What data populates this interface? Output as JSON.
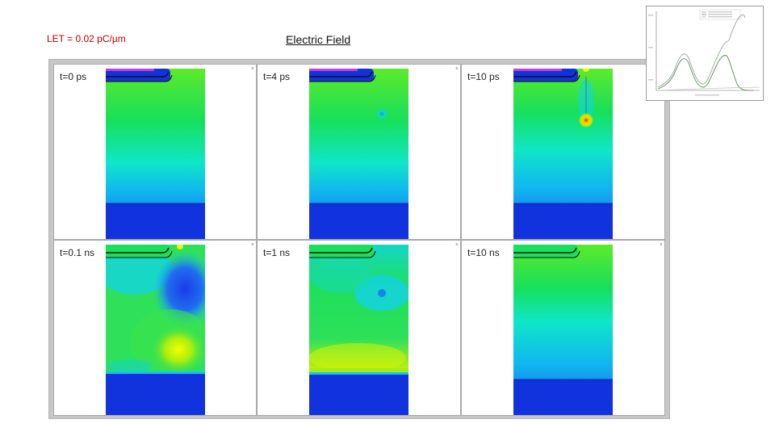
{
  "header": {
    "let_label": "LET = 0.02 pC/µm",
    "title": "Electric Field"
  },
  "panels": [
    {
      "time_label": "t=0 ps"
    },
    {
      "time_label": "t=4 ps"
    },
    {
      "time_label": "t=10 ps"
    },
    {
      "time_label": "t=0.1 ns"
    },
    {
      "time_label": "t=1 ns"
    },
    {
      "time_label": "t=10 ns"
    }
  ],
  "colors": {
    "substrate_blue": "#1133dd",
    "high_field_yellow": "#f2ff00",
    "mid_field_green": "#1ee05a",
    "low_field_cyan": "#0fe6f0",
    "peak_red": "#ff2a00",
    "let_label_red": "#c00000"
  }
}
